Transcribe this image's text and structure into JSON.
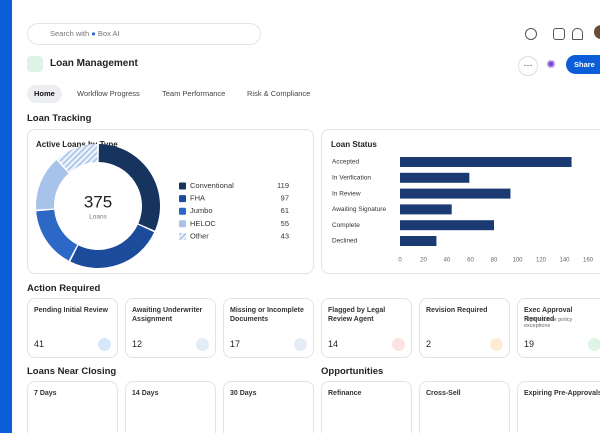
{
  "search": {
    "placeholder": "Search with",
    "ai": "Box AI"
  },
  "header": {
    "title": "Loan Management",
    "share": "Share"
  },
  "tabs": [
    "Home",
    "Workflow Progress",
    "Team Performance",
    "Risk & Compliance"
  ],
  "sections": {
    "tracking": "Loan Tracking",
    "action": "Action Required",
    "closing": "Loans Near Closing",
    "opportunities": "Opportunities"
  },
  "chart_data": [
    {
      "type": "pie",
      "title": "Active Loans by Type",
      "total": 375,
      "total_label": "Loans",
      "categories": [
        "Conventional",
        "FHA",
        "Jumbo",
        "HELOC",
        "Other"
      ],
      "values": [
        119,
        97,
        61,
        55,
        43
      ],
      "colors": [
        "#17345f",
        "#1d4b9c",
        "#2d68c6",
        "#a8c3ea",
        "#c9d8ee"
      ],
      "hatched": [
        false,
        false,
        false,
        false,
        true
      ]
    },
    {
      "type": "bar",
      "title": "Loan Status",
      "categories": [
        "Accepted",
        "In Verification",
        "In Review",
        "Awaiting Signature",
        "Complete",
        "Declined"
      ],
      "values": [
        146,
        59,
        94,
        44,
        80,
        31
      ],
      "color": "#1b3a72",
      "xlim": [
        0,
        160
      ],
      "xticks": [
        0,
        20,
        40,
        60,
        80,
        100,
        120,
        140,
        160
      ]
    }
  ],
  "action_required": [
    {
      "title": "Pending Initial Review",
      "count": 41
    },
    {
      "title": "Awaiting Underwriter Assignment",
      "count": 12
    },
    {
      "title": "Missing or Incomplete Documents",
      "count": 17
    },
    {
      "title": "Flagged by Legal Review Agent",
      "count": 14
    },
    {
      "title": "Revision Required",
      "count": 2
    },
    {
      "title": "Exec Approval Required",
      "subtitle": "High-value or policy exceptions",
      "count": 19
    }
  ],
  "loans_near_closing": [
    "7 Days",
    "14 Days",
    "30 Days"
  ],
  "opportunities": [
    "Refinance",
    "Cross-Sell",
    "Expiring Pre-Approvals"
  ]
}
